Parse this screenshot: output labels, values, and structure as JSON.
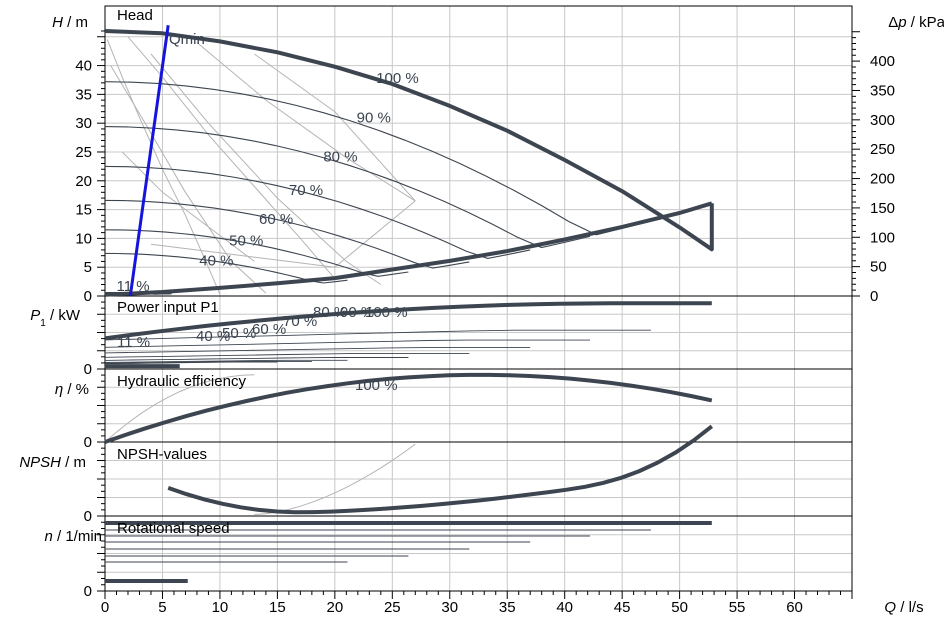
{
  "chart_data": {
    "type": "line",
    "x_axis": {
      "label_symbol": "Q",
      "label_unit": " / l/s",
      "range": [
        0,
        65
      ],
      "ticks": [
        "0",
        "5",
        "10",
        "15",
        "20",
        "25",
        "30",
        "35",
        "40",
        "45",
        "50",
        "55",
        "60"
      ]
    },
    "colors": {
      "main_curve": "#3d4550",
      "speed_curve": "#3d4550",
      "efficiency_contour": "#b4b4b4",
      "qmin_line": "#1414dc",
      "grid": "#c8c8c8"
    },
    "panels": [
      {
        "id": "head",
        "title": "Head",
        "ylabel_symbol": "H",
        "ylabel_unit": " / m",
        "ylim": [
          0,
          46
        ],
        "y_ticks": [
          "0",
          "5",
          "10",
          "15",
          "20",
          "25",
          "30",
          "35",
          "40"
        ],
        "right_axis": {
          "label_symbol": "Δp",
          "label_unit": " / kPa",
          "ticks": [
            "0",
            "50",
            "100",
            "150",
            "200",
            "250",
            "300",
            "350",
            "400"
          ]
        },
        "max_curve": {
          "x": [
            0,
            5,
            10,
            15,
            20,
            25,
            30,
            35,
            40,
            45,
            50,
            52.8
          ],
          "y": [
            46,
            45.6,
            44.2,
            42.3,
            39.8,
            36.8,
            33,
            28.7,
            23.6,
            18.2,
            11.9,
            8.1
          ]
        },
        "system_curve": {
          "x": [
            0,
            5,
            10,
            15,
            20,
            25,
            30,
            35,
            40,
            45,
            50,
            52.8
          ],
          "y": [
            0.2,
            0.7,
            1.4,
            2.2,
            3.1,
            4.6,
            6.1,
            7.8,
            9.8,
            12,
            14.4,
            16.1
          ]
        },
        "speed_curves": [
          {
            "label": "90 %",
            "x_end": 47.5,
            "shutoff": 37.2
          },
          {
            "label": "80 %",
            "x_end": 42.2,
            "shutoff": 29.4
          },
          {
            "label": "70 %",
            "x_end": 37,
            "shutoff": 22.5
          },
          {
            "label": "60 %",
            "x_end": 31.7,
            "shutoff": 16.6
          },
          {
            "label": "50 %",
            "x_end": 26.4,
            "shutoff": 11.5
          },
          {
            "label": "40 %",
            "x_end": 21.1,
            "shutoff": 7.4
          },
          {
            "label": "11 %",
            "x_end": 5.8,
            "shutoff": 0.6
          }
        ],
        "speed_labels": [
          {
            "text": "100 %",
            "x": 23.6,
            "y": 37.8
          },
          {
            "text": "90 %",
            "x": 21.9,
            "y": 31
          },
          {
            "text": "80 %",
            "x": 19,
            "y": 24.2
          },
          {
            "text": "70 %",
            "x": 16,
            "y": 18.4
          },
          {
            "text": "60 %",
            "x": 13.4,
            "y": 13.4
          },
          {
            "text": "50 %",
            "x": 10.8,
            "y": 9.6
          },
          {
            "text": "40 %",
            "x": 8.2,
            "y": 6.2
          },
          {
            "text": "11 %",
            "x": 1,
            "y": 1.7
          }
        ],
        "qmin_label": "Qmin",
        "qmin_line": {
          "x": [
            2.2,
            5.5
          ],
          "y": [
            0,
            47
          ]
        }
      },
      {
        "id": "power",
        "title": "Power input P1",
        "ylabel_symbol": "P",
        "ylabel_subscript": "1",
        "ylabel_unit": " / kW",
        "y_ticks": [
          "0"
        ],
        "speed_labels_row1": [
          "80 %",
          "90 %",
          "100 %"
        ],
        "speed_labels_row2": [
          "11 %",
          "40 %",
          "50 %",
          "60 %",
          "70 %"
        ]
      },
      {
        "id": "efficiency",
        "title": "Hydraulic efficiency",
        "ylabel_symbol": "η",
        "ylabel_unit": " / %",
        "y_ticks": [
          "0"
        ],
        "curve_label": "100 %"
      },
      {
        "id": "npsh",
        "title": "NPSH-values",
        "ylabel_symbol": "NPSH",
        "ylabel_unit": " / m",
        "y_ticks": [
          "0"
        ]
      },
      {
        "id": "speed",
        "title": "Rotational speed",
        "ylabel_symbol": "n",
        "ylabel_unit": " / 1/min",
        "y_ticks": [
          "0"
        ]
      }
    ]
  }
}
